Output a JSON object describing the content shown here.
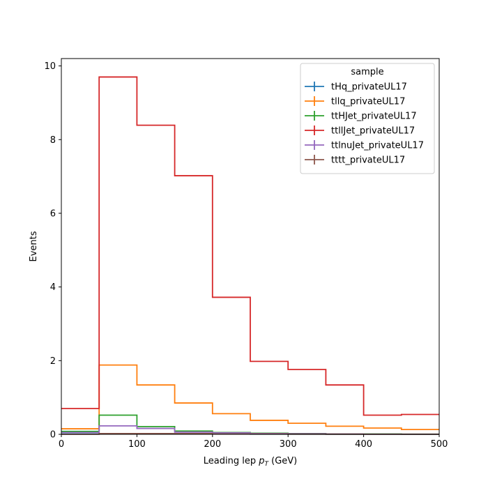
{
  "chart_data": {
    "type": "histogram-step",
    "xlabel_prefix": "Leading lep ",
    "xlabel_var_main": "p",
    "xlabel_var_sub": "T",
    "xlabel_suffix": " (GeV)",
    "ylabel": "Events",
    "xlim": [
      0,
      500
    ],
    "ylim": [
      0,
      10.2
    ],
    "x_ticks": [
      0,
      100,
      200,
      300,
      400,
      500
    ],
    "y_ticks": [
      0,
      2,
      4,
      6,
      8,
      10
    ],
    "grid": false,
    "legend_title": "sample",
    "legend_position": "top-right",
    "bin_edges": [
      0,
      50,
      100,
      150,
      200,
      250,
      300,
      350,
      400,
      450,
      500
    ],
    "series": [
      {
        "name": "tHq_privateUL17",
        "color": "#1f77b4",
        "values": [
          0.01,
          0.02,
          0.02,
          0.01,
          0.01,
          0.005,
          0.005,
          0.003,
          0.002,
          0.001
        ]
      },
      {
        "name": "tllq_privateUL17",
        "color": "#ff7f0e",
        "values": [
          0.15,
          1.88,
          1.34,
          0.85,
          0.56,
          0.38,
          0.3,
          0.22,
          0.17,
          0.13
        ]
      },
      {
        "name": "ttHJet_privateUL17",
        "color": "#2ca02c",
        "values": [
          0.08,
          0.52,
          0.21,
          0.09,
          0.05,
          0.03,
          0.02,
          0.01,
          0.01,
          0.005
        ]
      },
      {
        "name": "ttllJet_privateUL17",
        "color": "#d62728",
        "values": [
          0.7,
          9.7,
          8.39,
          7.02,
          3.72,
          1.98,
          1.76,
          1.34,
          0.52,
          0.54
        ]
      },
      {
        "name": "ttlnuJet_privateUL17",
        "color": "#9467bd",
        "values": [
          0.05,
          0.23,
          0.16,
          0.06,
          0.04,
          0.02,
          0.015,
          0.01,
          0.005,
          0.005
        ]
      },
      {
        "name": "tttt_privateUL17",
        "color": "#8c564b",
        "values": [
          0.003,
          0.02,
          0.02,
          0.02,
          0.01,
          0.01,
          0.005,
          0.004,
          0.003,
          0.002
        ]
      }
    ]
  }
}
